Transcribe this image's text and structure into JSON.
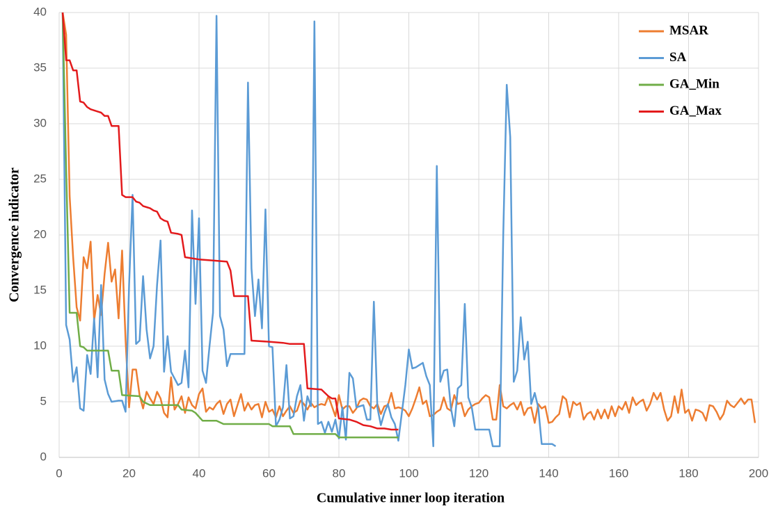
{
  "chart_data": {
    "type": "line",
    "x_label": "Cumulative inner loop iteration",
    "y_label": "Convergence indicator",
    "xlim": [
      0,
      200
    ],
    "xticks": [
      0,
      20,
      40,
      60,
      80,
      100,
      120,
      140,
      160,
      180,
      200
    ],
    "ylim": [
      0,
      40
    ],
    "yticks": [
      0,
      5,
      10,
      15,
      20,
      25,
      30,
      35,
      40
    ],
    "grid": true,
    "legend": "top-right",
    "series": [
      {
        "name": "MSAR",
        "color": "#ed7d31",
        "x": [
          1,
          2,
          3,
          4,
          5,
          6,
          7,
          8,
          9,
          10,
          11,
          12,
          13,
          14,
          15,
          16,
          17,
          18,
          19,
          20,
          21,
          22,
          23,
          24,
          25,
          26,
          27,
          28,
          29,
          30,
          31,
          32,
          33,
          34,
          35,
          36,
          37,
          38,
          39,
          40,
          41,
          42,
          43,
          44,
          45,
          46,
          47,
          48,
          49,
          50,
          51,
          52,
          53,
          54,
          55,
          56,
          57,
          58,
          59,
          60,
          61,
          62,
          63,
          64,
          65,
          66,
          67,
          68,
          69,
          70,
          71,
          72,
          73,
          74,
          75,
          76,
          77,
          78,
          79,
          80,
          81,
          82,
          83,
          84,
          85,
          86,
          87,
          88,
          89,
          90,
          91,
          92,
          93,
          94,
          95,
          96,
          97,
          98,
          99,
          100,
          101,
          102,
          103,
          104,
          105,
          106,
          107,
          108,
          109,
          110,
          111,
          112,
          113,
          114,
          115,
          116,
          117,
          118,
          119,
          120,
          121,
          122,
          123,
          124,
          125,
          126,
          127,
          128,
          129,
          130,
          131,
          132,
          133,
          134,
          135,
          136,
          137,
          138,
          139,
          140,
          141,
          142,
          143,
          144,
          145,
          146,
          147,
          148,
          149,
          150,
          151,
          152,
          153,
          154,
          155,
          156,
          157,
          158,
          159,
          160,
          161,
          162,
          163,
          164,
          165,
          166,
          167,
          168,
          169,
          170,
          171,
          172,
          173,
          174,
          175,
          176,
          177,
          178,
          179,
          180,
          181,
          182,
          183,
          184,
          185,
          186,
          187,
          188,
          189,
          190,
          191,
          192,
          193,
          194,
          195,
          196,
          197,
          198,
          199
        ],
        "values": [
          40,
          38,
          23.5,
          18,
          13.5,
          12.3,
          18,
          17,
          19.4,
          12.3,
          14.6,
          12.8,
          16.5,
          19.3,
          15.8,
          16.9,
          12.5,
          18.6,
          10.5,
          4.5,
          7.9,
          7.9,
          5.6,
          4.4,
          5.9,
          5.3,
          4.8,
          5.9,
          5.3,
          4,
          3.6,
          7.2,
          4.3,
          4.8,
          5.5,
          4,
          5.4,
          4.7,
          4.4,
          5.7,
          6.2,
          4.1,
          4.5,
          4.3,
          4.8,
          5.1,
          3.9,
          4.8,
          5.2,
          3.7,
          4.7,
          5.7,
          4.2,
          4.9,
          4.3,
          4.7,
          4.8,
          3.6,
          5,
          4.1,
          4.3,
          3.6,
          4.6,
          3.7,
          4.2,
          4.6,
          4,
          4.2,
          5.1,
          4.8,
          4.3,
          4.9,
          4.5,
          4.7,
          4.8,
          4.7,
          5.5,
          4.6,
          3.7,
          5.6,
          4.3,
          4.6,
          4.6,
          4,
          4.4,
          5.1,
          5.3,
          5.2,
          4.6,
          4.4,
          4.8,
          3.9,
          4.6,
          4.7,
          5.8,
          4.4,
          4.5,
          4.4,
          4.2,
          3.7,
          4.4,
          5.3,
          6.3,
          4.8,
          5.1,
          3.7,
          3.8,
          4.1,
          4.3,
          5.4,
          4.4,
          4.2,
          5.6,
          4.8,
          4.9,
          3.7,
          4.3,
          4.6,
          4.8,
          4.9,
          5.3,
          5.6,
          5.4,
          3.4,
          3.4,
          6.5,
          4.6,
          4.4,
          4.7,
          4.9,
          4.3,
          5,
          3.8,
          4.4,
          4.5,
          3.1,
          4.8,
          4.4,
          4.6,
          3.1,
          3.2,
          3.6,
          3.9,
          5.5,
          5.2,
          3.6,
          5,
          4.7,
          4.9,
          3.4,
          3.9,
          4.1,
          3.4,
          4.3,
          3.5,
          4.3,
          3.5,
          4.6,
          3.7,
          4.6,
          4.3,
          5,
          4,
          5.4,
          4.7,
          5,
          5.2,
          4.2,
          4.8,
          5.8,
          5.2,
          5.8,
          4.3,
          3.3,
          3.7,
          5.5,
          4,
          6.1,
          4,
          4.3,
          3.3,
          4.3,
          4.2,
          4,
          3.3,
          4.7,
          4.6,
          4.1,
          3.4,
          3.9,
          5.1,
          4.7,
          4.5,
          4.9,
          5.3,
          4.8,
          5.2,
          5.2,
          3.1
        ]
      },
      {
        "name": "SA",
        "color": "#5b9bd5",
        "x": [
          1,
          2,
          3,
          4,
          5,
          6,
          7,
          8,
          9,
          10,
          11,
          12,
          13,
          14,
          15,
          17,
          18,
          19,
          20,
          21,
          22,
          23,
          24,
          25,
          26,
          27,
          28,
          29,
          30,
          31,
          32,
          33,
          34,
          35,
          36,
          37,
          38,
          39,
          40,
          41,
          42,
          43,
          44,
          45,
          46,
          47,
          48,
          49,
          53,
          54,
          55,
          56,
          57,
          58,
          59,
          60,
          61,
          62,
          63,
          64,
          65,
          66,
          67,
          68,
          69,
          70,
          71,
          72,
          73,
          74,
          75,
          76,
          77,
          78,
          79,
          80,
          81,
          82,
          83,
          84,
          85,
          87,
          88,
          89,
          90,
          91,
          92,
          93,
          94,
          95,
          96,
          97,
          98,
          99,
          100,
          101,
          102,
          103,
          104,
          105,
          106,
          107,
          108,
          109,
          110,
          111,
          112,
          113,
          114,
          115,
          116,
          117,
          118,
          119,
          123,
          124,
          126,
          127,
          128,
          129,
          130,
          131,
          132,
          133,
          134,
          135,
          136,
          137,
          138,
          141,
          142
        ],
        "values": [
          40,
          11.9,
          10.6,
          6.8,
          8.1,
          4.4,
          4.2,
          9.2,
          7.5,
          12.5,
          7.2,
          15.5,
          7,
          5.7,
          5,
          5.1,
          5.1,
          4.1,
          15.5,
          23.6,
          10.2,
          10.5,
          16.3,
          11.5,
          8.9,
          10,
          15.5,
          19.5,
          7.7,
          10.9,
          7.7,
          7.1,
          6.5,
          6.7,
          9.6,
          6.3,
          22.2,
          13.8,
          21.5,
          7.8,
          6.7,
          10,
          13,
          39.7,
          12.7,
          11.5,
          8.2,
          9.3,
          9.3,
          33.7,
          17,
          12.7,
          16,
          11.6,
          22.3,
          10,
          9.9,
          2.8,
          3.4,
          4.5,
          8.3,
          3.5,
          3.7,
          5.5,
          6.5,
          3.3,
          5.5,
          4.6,
          39.2,
          3,
          3.2,
          2.2,
          3.2,
          2.3,
          3.4,
          1.7,
          4.5,
          1.6,
          7.6,
          7.1,
          4.5,
          4.7,
          3.4,
          3.4,
          14,
          4.5,
          2.9,
          4,
          4.8,
          3.6,
          3,
          1.5,
          4,
          6.5,
          9.7,
          8,
          8.1,
          8.3,
          8.5,
          7.3,
          6.5,
          1,
          26.2,
          6.8,
          7.8,
          7.9,
          4.5,
          2.8,
          6.2,
          6.5,
          13.8,
          5.4,
          4.5,
          2.5,
          2.5,
          1,
          1,
          20,
          33.5,
          28.8,
          6.8,
          7.8,
          12.6,
          8.8,
          10.4,
          4.8,
          5.8,
          4.5,
          1.2,
          1.2,
          1
        ]
      },
      {
        "name": "GA_Min",
        "color": "#70ad47",
        "x": [
          1,
          2,
          3,
          5,
          6,
          7,
          8,
          14,
          15,
          17,
          18,
          23,
          24,
          26,
          34,
          35,
          38,
          39,
          41,
          45,
          47,
          60,
          61,
          66,
          67,
          79,
          80,
          97
        ],
        "values": [
          40,
          26,
          13,
          13,
          10,
          9.9,
          9.6,
          9.6,
          7.8,
          7.8,
          5.6,
          5.5,
          5,
          4.7,
          4.7,
          4.3,
          4.2,
          4,
          3.3,
          3.3,
          3,
          3,
          2.8,
          2.8,
          2.1,
          2.1,
          1.8,
          1.8
        ]
      },
      {
        "name": "GA_Max",
        "color": "#e31a1c",
        "x": [
          1,
          2,
          3,
          4,
          5,
          6,
          7,
          8,
          9,
          10,
          11,
          12,
          13,
          14,
          15,
          17,
          18,
          19,
          21,
          22,
          23,
          24,
          25,
          26,
          27,
          28,
          29,
          30,
          31,
          32,
          34,
          35,
          36,
          38,
          40,
          44,
          48,
          49,
          50,
          54,
          55,
          60,
          64,
          66,
          70,
          71,
          75,
          77,
          78,
          79,
          80,
          83,
          85,
          87,
          89,
          91,
          93,
          95,
          97
        ],
        "values": [
          40,
          35.7,
          35.7,
          34.8,
          34.8,
          32,
          31.9,
          31.5,
          31.3,
          31.2,
          31.1,
          31,
          30.7,
          30.7,
          29.8,
          29.8,
          23.6,
          23.4,
          23.4,
          23,
          22.9,
          22.6,
          22.5,
          22.4,
          22.2,
          22.1,
          21.5,
          21.3,
          21.2,
          20.2,
          20.1,
          20,
          18,
          17.9,
          17.8,
          17.7,
          17.6,
          16.8,
          14.5,
          14.5,
          10.5,
          10.4,
          10.3,
          10.2,
          10.2,
          6.2,
          6.1,
          5.5,
          5.3,
          5.3,
          3.5,
          3.4,
          3.2,
          2.9,
          2.8,
          2.6,
          2.6,
          2.5,
          2.5
        ]
      }
    ]
  }
}
